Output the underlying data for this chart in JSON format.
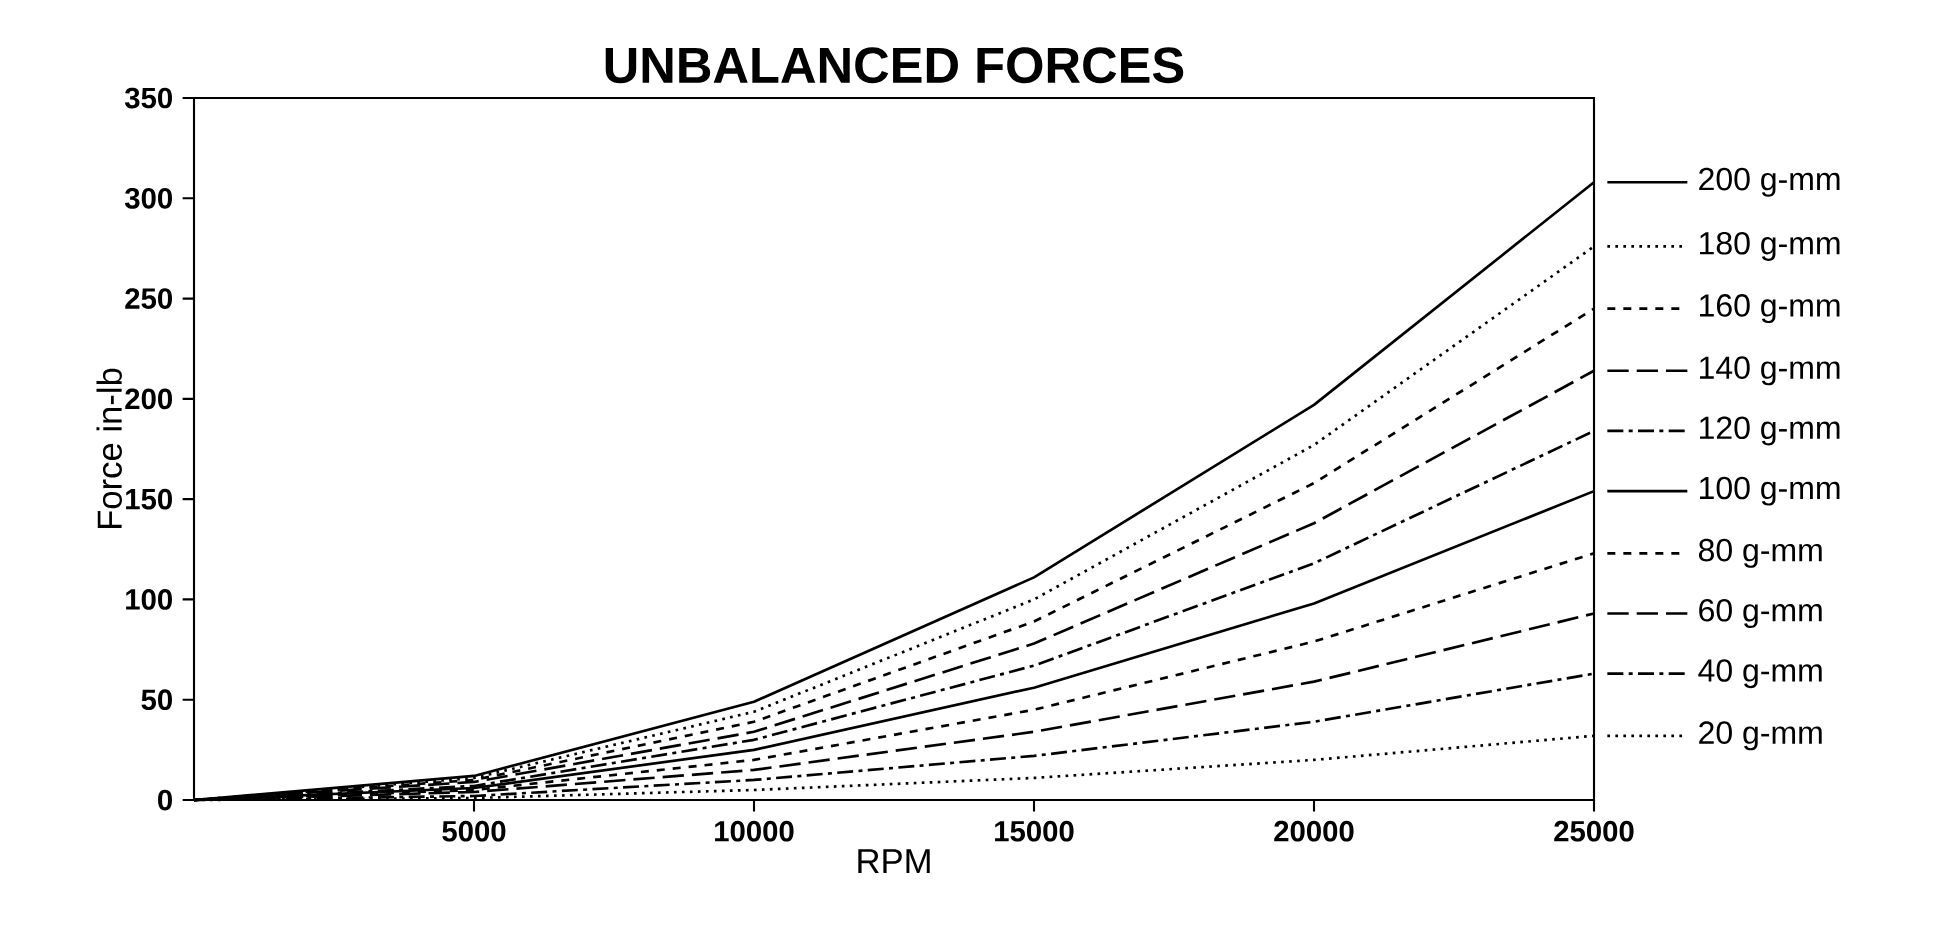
{
  "chart_data": {
    "type": "line",
    "title": "UNBALANCED FORCES",
    "xlabel": "RPM",
    "ylabel": "Force in-lb",
    "x": [
      0,
      5000,
      10000,
      15000,
      20000,
      25000
    ],
    "xlim": [
      0,
      25000
    ],
    "ylim": [
      0,
      350
    ],
    "xticks": [
      5000,
      10000,
      15000,
      20000,
      25000
    ],
    "yticks": [
      0,
      50,
      100,
      150,
      200,
      250,
      300,
      350
    ],
    "grid": false,
    "legend": "right",
    "marker": "none",
    "series": [
      {
        "name": "200 g-mm",
        "color": "#000000",
        "line_style": "solid",
        "values": [
          0,
          12,
          49,
          111,
          197,
          308
        ]
      },
      {
        "name": "180 g-mm",
        "color": "#000000",
        "line_style": "dotted",
        "values": [
          0,
          11,
          44,
          100,
          177,
          276
        ]
      },
      {
        "name": "160 g-mm",
        "color": "#000000",
        "line_style": "dashed",
        "values": [
          0,
          10,
          39,
          89,
          158,
          245
        ]
      },
      {
        "name": "140 g-mm",
        "color": "#000000",
        "line_style": "longdashed",
        "values": [
          0,
          9,
          34,
          78,
          138,
          214
        ]
      },
      {
        "name": "120 g-mm",
        "color": "#000000",
        "line_style": "dashdot",
        "values": [
          0,
          7,
          30,
          67,
          118,
          184
        ]
      },
      {
        "name": "100 g-mm",
        "color": "#000000",
        "line_style": "solid",
        "values": [
          0,
          6,
          25,
          56,
          98,
          154
        ]
      },
      {
        "name": "80 g-mm",
        "color": "#000000",
        "line_style": "dashed",
        "values": [
          0,
          5,
          20,
          45,
          79,
          123
        ]
      },
      {
        "name": "60 g-mm",
        "color": "#000000",
        "line_style": "longdashed",
        "values": [
          0,
          4,
          15,
          34,
          59,
          93
        ]
      },
      {
        "name": "40 g-mm",
        "color": "#000000",
        "line_style": "dashdot",
        "values": [
          0,
          2,
          10,
          22,
          39,
          63
        ]
      },
      {
        "name": "20 g-mm",
        "color": "#000000",
        "line_style": "dotted",
        "values": [
          0,
          1,
          5,
          11,
          20,
          32
        ]
      }
    ]
  }
}
